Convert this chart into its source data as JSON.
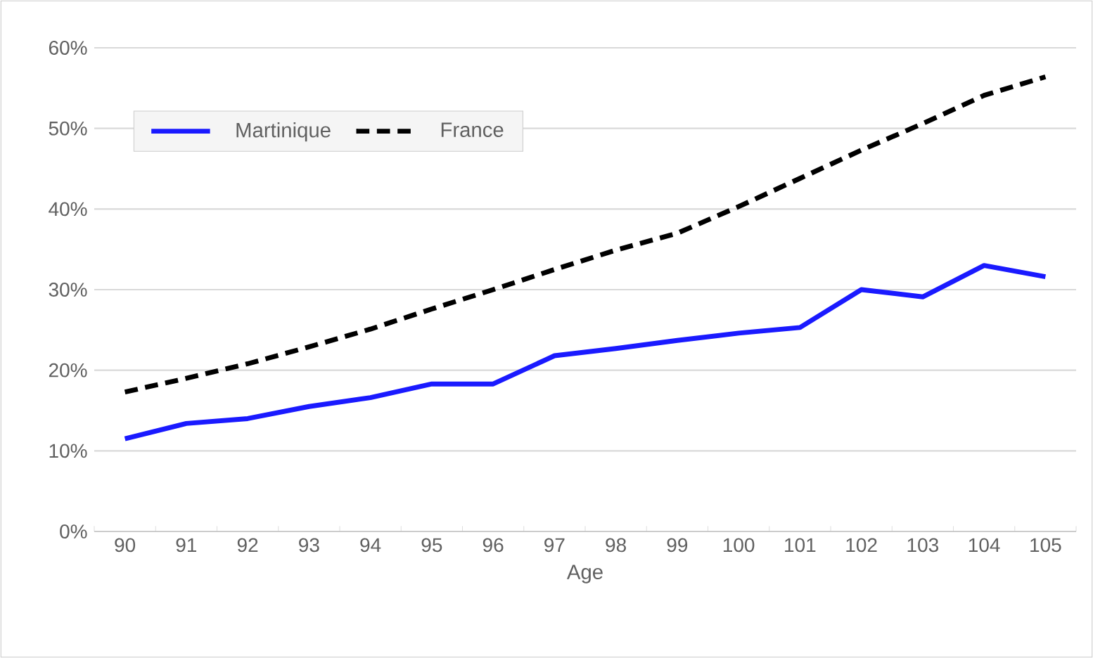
{
  "chart_data": {
    "type": "line",
    "xlabel": "Age",
    "categories": [
      "90",
      "91",
      "92",
      "93",
      "94",
      "95",
      "96",
      "97",
      "98",
      "99",
      "100",
      "101",
      "102",
      "103",
      "104",
      "105"
    ],
    "series": [
      {
        "name": "Martinique",
        "color": "#1a1aff",
        "line_style": "solid",
        "values": [
          11.5,
          13.4,
          14,
          15.5,
          16.6,
          18.3,
          18.3,
          21.8,
          22.7,
          23.7,
          24.6,
          25.3,
          30,
          29.1,
          33,
          31.6
        ]
      },
      {
        "name": "France",
        "color": "#000000",
        "line_style": "dashed",
        "values": [
          17.3,
          19,
          20.8,
          22.9,
          25.1,
          27.6,
          30,
          32.5,
          34.9,
          37,
          40.3,
          43.8,
          47.3,
          50.6,
          54.1,
          56.4
        ]
      }
    ],
    "ylim": [
      0,
      60
    ],
    "yticks": [
      {
        "value": 0,
        "label": "0%"
      },
      {
        "value": 10,
        "label": "10%"
      },
      {
        "value": 20,
        "label": "20%"
      },
      {
        "value": 30,
        "label": "30%"
      },
      {
        "value": 40,
        "label": "40%"
      },
      {
        "value": 50,
        "label": "50%"
      },
      {
        "value": 60,
        "label": "60%"
      }
    ],
    "grid": "y",
    "legend": "top left",
    "marker": "none"
  }
}
